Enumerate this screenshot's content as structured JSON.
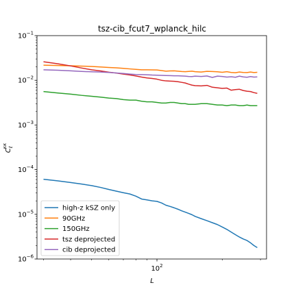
{
  "chart_data": {
    "type": "line",
    "title": "tsz-cib_fcut7_wplanck_hilc",
    "xlabel": "L",
    "ylabel_main": "C",
    "ylabel_sub": "ℓ",
    "ylabel_sup": "κκ",
    "x_scale": "log",
    "y_scale": "log",
    "xlim": [
      28,
      320
    ],
    "ylim": [
      1e-06,
      0.1
    ],
    "grid": false,
    "legend_position": "lower-left",
    "x_ticks": [
      {
        "value": 100,
        "base": "10",
        "exp": "2"
      }
    ],
    "y_ticks": [
      {
        "value": 1e-06,
        "base": "10",
        "exp": "−6"
      },
      {
        "value": 1e-05,
        "base": "10",
        "exp": "−5"
      },
      {
        "value": 0.0001,
        "base": "10",
        "exp": "−4"
      },
      {
        "value": 0.001,
        "base": "10",
        "exp": "−3"
      },
      {
        "value": 0.01,
        "base": "10",
        "exp": "−2"
      },
      {
        "value": 0.1,
        "base": "10",
        "exp": "−1"
      }
    ],
    "x": [
      30,
      35,
      40,
      45,
      50,
      55,
      60,
      65,
      70,
      75,
      80,
      85,
      90,
      95,
      100,
      105,
      110,
      115,
      120,
      125,
      130,
      135,
      140,
      145,
      150,
      160,
      170,
      180,
      190,
      200,
      210,
      220,
      230,
      240,
      250,
      260,
      270,
      280,
      290
    ],
    "series": [
      {
        "name": "high-z kSZ only",
        "color": "#1f77b4",
        "values": [
          6.1e-05,
          5.6e-05,
          5.15e-05,
          4.75e-05,
          4.4e-05,
          4e-05,
          3.6e-05,
          3.3e-05,
          3.05e-05,
          2.85e-05,
          2.55e-05,
          2.2e-05,
          2.1e-05,
          2e-05,
          1.95e-05,
          1.8e-05,
          1.6e-05,
          1.5e-05,
          1.4e-05,
          1.3e-05,
          1.2e-05,
          1.12e-05,
          1.05e-05,
          9.8e-06,
          9e-06,
          8e-06,
          7.2e-06,
          6.5e-06,
          5.9e-06,
          5.2e-06,
          4.6e-06,
          4e-06,
          3.5e-06,
          3.1e-06,
          2.8e-06,
          2.6e-06,
          2.3e-06,
          2e-06,
          1.8e-06
        ]
      },
      {
        "name": "90GHz",
        "color": "#ff7f0e",
        "values": [
          0.0218,
          0.0214,
          0.0211,
          0.0208,
          0.0204,
          0.0199,
          0.0194,
          0.019,
          0.0185,
          0.018,
          0.0176,
          0.0172,
          0.0172,
          0.0171,
          0.017,
          0.0165,
          0.016,
          0.0162,
          0.0163,
          0.016,
          0.0157,
          0.0156,
          0.0158,
          0.016,
          0.0156,
          0.0153,
          0.0159,
          0.0157,
          0.0155,
          0.0151,
          0.0156,
          0.015,
          0.0148,
          0.0153,
          0.015,
          0.0149,
          0.0153,
          0.0149,
          0.0151
        ]
      },
      {
        "name": "150GHz",
        "color": "#2ca02c",
        "values": [
          0.0056,
          0.0052,
          0.0049,
          0.0046,
          0.0044,
          0.0042,
          0.004,
          0.0039,
          0.0037,
          0.0036,
          0.0036,
          0.0034,
          0.0033,
          0.0033,
          0.0032,
          0.0031,
          0.0031,
          0.0032,
          0.0032,
          0.0031,
          0.003,
          0.003,
          0.0029,
          0.0029,
          0.0029,
          0.003,
          0.003,
          0.0029,
          0.0028,
          0.0028,
          0.0027,
          0.0028,
          0.0028,
          0.0027,
          0.0027,
          0.0028,
          0.0027,
          0.0027,
          0.0027
        ]
      },
      {
        "name": "tsz deprojected",
        "color": "#d62728",
        "values": [
          0.026,
          0.0234,
          0.021,
          0.0188,
          0.0172,
          0.0162,
          0.0152,
          0.0145,
          0.0138,
          0.0132,
          0.0125,
          0.0118,
          0.0113,
          0.011,
          0.0106,
          0.01,
          0.0097,
          0.0096,
          0.0095,
          0.0093,
          0.009,
          0.0087,
          0.0082,
          0.0078,
          0.0076,
          0.0075,
          0.0077,
          0.007,
          0.0068,
          0.0066,
          0.0067,
          0.006,
          0.0062,
          0.0063,
          0.0059,
          0.0057,
          0.0056,
          0.0053,
          0.0051
        ]
      },
      {
        "name": "cib deprojected",
        "color": "#9467bd",
        "values": [
          0.0172,
          0.0168,
          0.0163,
          0.0158,
          0.0155,
          0.0153,
          0.015,
          0.0146,
          0.0142,
          0.0138,
          0.0135,
          0.0134,
          0.0133,
          0.0131,
          0.013,
          0.0129,
          0.0128,
          0.0127,
          0.0126,
          0.0126,
          0.0125,
          0.0124,
          0.0122,
          0.0121,
          0.0124,
          0.0122,
          0.0125,
          0.0116,
          0.0124,
          0.0122,
          0.0118,
          0.012,
          0.0117,
          0.0124,
          0.0119,
          0.0117,
          0.0121,
          0.0118,
          0.0119
        ]
      }
    ]
  }
}
